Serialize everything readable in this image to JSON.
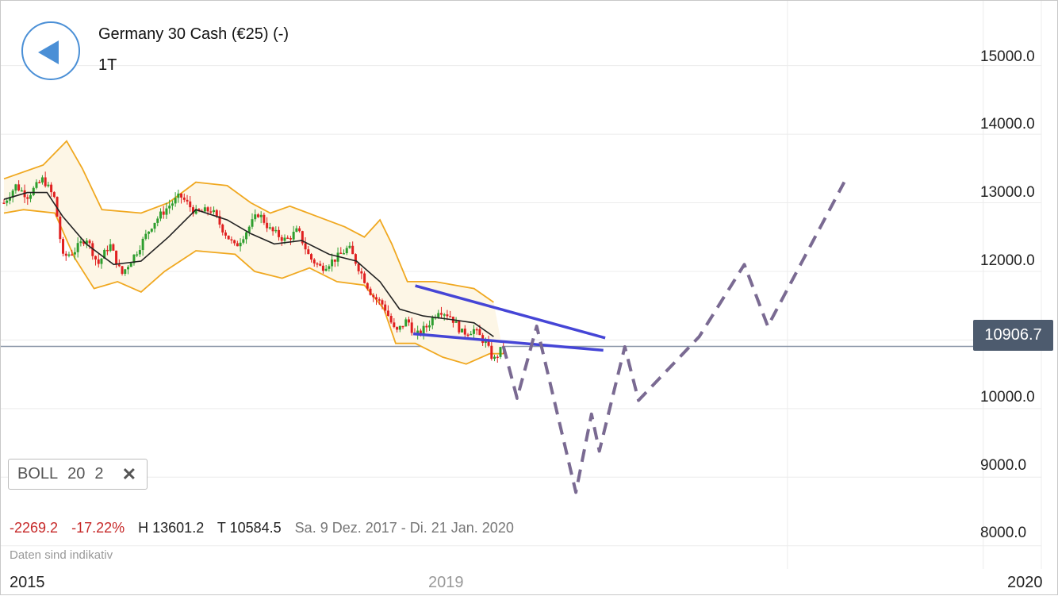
{
  "header": {
    "title": "Germany 30 Cash (€25) (-)",
    "timeframe": "1T"
  },
  "indicator": {
    "name": "BOLL",
    "period": "20",
    "stddev": "2",
    "remove_icon": "close-icon"
  },
  "stats": {
    "change": "-2269.2",
    "change_pct": "-17.22%",
    "high": "H 13601.2",
    "low": "T 10584.5",
    "range": "Sa. 9 Dez. 2017 - Di. 21 Jan. 2020"
  },
  "disclaimer": "Daten sind indikativ",
  "current_price": "10906.7",
  "colors": {
    "up": "#2e9e2e",
    "down": "#e02020",
    "band": "#f0a820",
    "band_fill": "#fdf6e6",
    "middle": "#222222",
    "trendline": "#4545d6",
    "projection": "#7a6a92",
    "price_line": "#8a96a8",
    "price_badge": "#4d5b6e",
    "accent": "#4a8fd6"
  },
  "chart_data": {
    "type": "line",
    "instrument": "Germany 30 Cash (€25) (-)",
    "y_ticks": [
      "15000.0",
      "14000.0",
      "13000.0",
      "12000.0",
      "10000.0",
      "9000.0",
      "8000.0"
    ],
    "y_tick_values": [
      15000,
      14000,
      13000,
      12000,
      10000,
      9000,
      8000
    ],
    "x_ticks": [
      {
        "label": "2015",
        "t": 2015.0
      },
      {
        "label": "2019",
        "t": 2019.0
      },
      {
        "label": "2020",
        "t": 2020.0
      }
    ],
    "ylim": [
      7800,
      15800
    ],
    "xlim": [
      2015.0,
      2020.24
    ],
    "current_price": 10906.7,
    "indicator": "Bollinger Bands (20, 2)",
    "price_path": [
      [
        2015.0,
        13000
      ],
      [
        2015.06,
        13250
      ],
      [
        2015.12,
        13100
      ],
      [
        2015.2,
        13350
      ],
      [
        2015.26,
        13050
      ],
      [
        2015.3,
        12200
      ],
      [
        2015.36,
        12300
      ],
      [
        2015.42,
        12500
      ],
      [
        2015.48,
        12100
      ],
      [
        2015.54,
        12400
      ],
      [
        2015.6,
        11950
      ],
      [
        2015.68,
        12300
      ],
      [
        2015.76,
        12700
      ],
      [
        2015.84,
        12950
      ],
      [
        2015.9,
        13100
      ],
      [
        2015.98,
        12850
      ],
      [
        2016.06,
        12900
      ],
      [
        2016.12,
        12600
      ],
      [
        2016.18,
        12350
      ],
      [
        2016.24,
        12600
      ],
      [
        2016.3,
        12850
      ],
      [
        2016.36,
        12600
      ],
      [
        2016.44,
        12450
      ],
      [
        2016.5,
        12600
      ],
      [
        2016.56,
        12200
      ],
      [
        2016.62,
        12050
      ],
      [
        2016.7,
        12200
      ],
      [
        2016.76,
        12350
      ],
      [
        2016.82,
        12000
      ],
      [
        2016.88,
        11650
      ],
      [
        2016.94,
        11500
      ],
      [
        2017.0,
        11100
      ],
      [
        2017.06,
        11300
      ],
      [
        2017.1,
        11050
      ],
      [
        2017.16,
        11200
      ],
      [
        2017.22,
        11450
      ],
      [
        2017.28,
        11350
      ],
      [
        2017.34,
        11100
      ],
      [
        2017.4,
        11150
      ],
      [
        2017.46,
        10950
      ],
      [
        2017.5,
        10700
      ],
      [
        2017.55,
        10907
      ]
    ],
    "bb_upper": [
      [
        2015.0,
        13350
      ],
      [
        2015.2,
        13550
      ],
      [
        2015.32,
        13900
      ],
      [
        2015.4,
        13500
      ],
      [
        2015.5,
        12900
      ],
      [
        2015.7,
        12850
      ],
      [
        2015.84,
        13000
      ],
      [
        2015.98,
        13300
      ],
      [
        2016.14,
        13250
      ],
      [
        2016.26,
        13000
      ],
      [
        2016.36,
        12850
      ],
      [
        2016.46,
        12950
      ],
      [
        2016.6,
        12800
      ],
      [
        2016.74,
        12650
      ],
      [
        2016.84,
        12500
      ],
      [
        2016.92,
        12750
      ],
      [
        2016.98,
        12400
      ],
      [
        2017.06,
        11850
      ],
      [
        2017.2,
        11850
      ],
      [
        2017.4,
        11750
      ],
      [
        2017.5,
        11550
      ]
    ],
    "bb_lower": [
      [
        2015.0,
        12850
      ],
      [
        2015.1,
        12900
      ],
      [
        2015.26,
        12850
      ],
      [
        2015.36,
        12200
      ],
      [
        2015.46,
        11750
      ],
      [
        2015.58,
        11850
      ],
      [
        2015.7,
        11700
      ],
      [
        2015.82,
        12000
      ],
      [
        2015.98,
        12300
      ],
      [
        2016.18,
        12250
      ],
      [
        2016.28,
        12000
      ],
      [
        2016.42,
        11900
      ],
      [
        2016.56,
        12050
      ],
      [
        2016.7,
        11850
      ],
      [
        2016.84,
        11800
      ],
      [
        2016.94,
        11450
      ],
      [
        2017.0,
        10950
      ],
      [
        2017.1,
        10950
      ],
      [
        2017.24,
        10750
      ],
      [
        2017.36,
        10650
      ],
      [
        2017.48,
        10800
      ],
      [
        2017.55,
        10800
      ]
    ],
    "bb_middle": [
      [
        2015.0,
        13050
      ],
      [
        2015.12,
        13150
      ],
      [
        2015.22,
        13150
      ],
      [
        2015.3,
        12800
      ],
      [
        2015.42,
        12400
      ],
      [
        2015.56,
        12100
      ],
      [
        2015.7,
        12150
      ],
      [
        2015.84,
        12500
      ],
      [
        2015.98,
        12900
      ],
      [
        2016.14,
        12750
      ],
      [
        2016.26,
        12550
      ],
      [
        2016.38,
        12400
      ],
      [
        2016.52,
        12450
      ],
      [
        2016.66,
        12250
      ],
      [
        2016.8,
        12150
      ],
      [
        2016.92,
        11850
      ],
      [
        2017.02,
        11450
      ],
      [
        2017.14,
        11350
      ],
      [
        2017.28,
        11300
      ],
      [
        2017.4,
        11250
      ],
      [
        2017.5,
        11050
      ]
    ],
    "trendline_upper": [
      [
        2017.1,
        11790
      ],
      [
        2018.07,
        11030
      ]
    ],
    "trendline_lower": [
      [
        2017.09,
        11090
      ],
      [
        2018.06,
        10850
      ]
    ],
    "projection": [
      [
        2017.55,
        10907
      ],
      [
        2017.62,
        10150
      ],
      [
        2017.72,
        11200
      ],
      [
        2017.84,
        9750
      ],
      [
        2017.92,
        8780
      ],
      [
        2018.0,
        9920
      ],
      [
        2018.04,
        9380
      ],
      [
        2018.17,
        10900
      ],
      [
        2018.24,
        10120
      ],
      [
        2018.55,
        11050
      ],
      [
        2018.78,
        12100
      ],
      [
        2018.9,
        11200
      ],
      [
        2019.29,
        13300
      ]
    ]
  }
}
